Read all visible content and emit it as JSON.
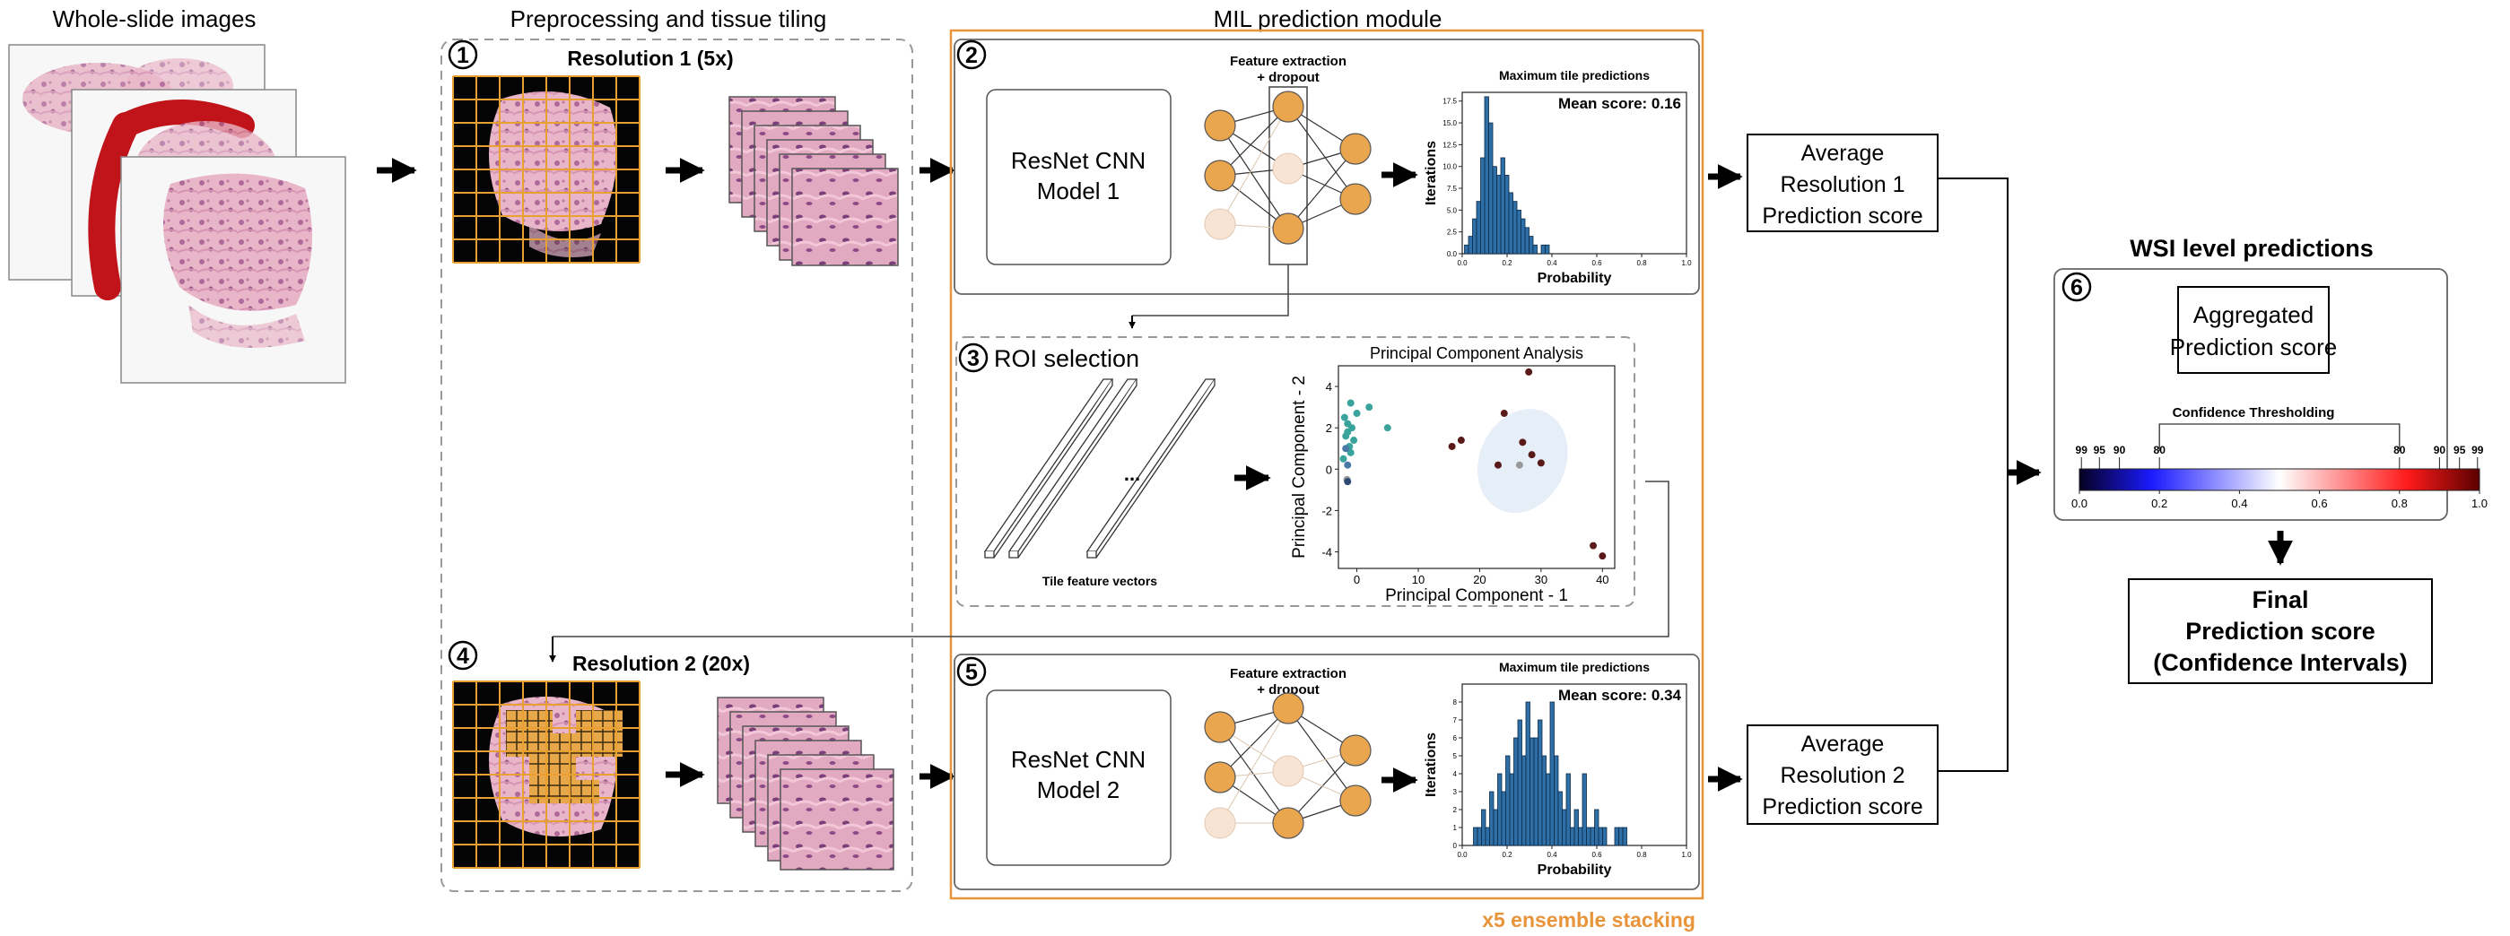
{
  "headers": {
    "wsi": "Whole-slide images",
    "preproc": "Preprocessing and tissue tiling",
    "mil": "MIL prediction module",
    "wsi_level": "WSI level predictions"
  },
  "steps": {
    "s1": "1",
    "s2": "2",
    "s3": "3",
    "s4": "4",
    "s5": "5",
    "s6": "6"
  },
  "resolution1": "Resolution 1 (5x)",
  "resolution2": "Resolution 2 (20x)",
  "model1": {
    "line1": "ResNet CNN",
    "line2": "Model 1"
  },
  "model2": {
    "line1": "ResNet CNN",
    "line2": "Model 2"
  },
  "feature_extraction": {
    "line1": "Feature extraction",
    "line2": "+ dropout"
  },
  "roi": {
    "title": "ROI selection",
    "ellipsis": "...",
    "tile_vectors": "Tile feature vectors"
  },
  "avg1": {
    "line1": "Average",
    "line2": "Resolution 1",
    "line3": "Prediction score"
  },
  "avg2": {
    "line1": "Average",
    "line2": "Resolution 2",
    "line3": "Prediction score"
  },
  "aggregated": {
    "line1": "Aggregated",
    "line2": "Prediction score"
  },
  "final": {
    "line1": "Final",
    "line2": "Prediction score",
    "line3": "(Confidence Intervals)"
  },
  "ensemble": "x5 ensemble stacking",
  "confidence": {
    "title": "Confidence Thresholding",
    "left_ticks": [
      "99",
      "95",
      "90",
      "80"
    ],
    "right_ticks": [
      "80",
      "90",
      "95",
      "99"
    ],
    "axis_ticks": [
      "0.0",
      "0.2",
      "0.4",
      "0.6",
      "0.8",
      "1.0"
    ],
    "colors": {
      "low": "#08002a",
      "mid_low": "#1030ff",
      "mid": "#ffffff",
      "mid_high": "#ff2020",
      "high": "#5a0000"
    }
  },
  "chart_data": [
    {
      "type": "bar",
      "title": "Maximum tile predictions",
      "annotation": "Mean score: 0.16",
      "xlabel": "Probability",
      "ylabel": "Iterations",
      "xlim": [
        0.0,
        1.0
      ],
      "ylim": [
        0,
        18.5
      ],
      "xticks": [
        "0.0",
        "0.2",
        "0.4",
        "0.6",
        "0.8",
        "1.0"
      ],
      "yticks": [
        "0.0",
        "2.5",
        "5.0",
        "7.5",
        "10.0",
        "12.5",
        "15.0",
        "17.5"
      ],
      "bin_width": 0.018,
      "x": [
        0.01,
        0.028,
        0.046,
        0.064,
        0.082,
        0.1,
        0.118,
        0.136,
        0.154,
        0.172,
        0.19,
        0.208,
        0.226,
        0.244,
        0.262,
        0.28,
        0.298,
        0.316,
        0.334,
        0.352,
        0.37,
        0.388
      ],
      "values": [
        1,
        2,
        4,
        6,
        11,
        18,
        15,
        10,
        9,
        11,
        9,
        7,
        6,
        5,
        4,
        3,
        2,
        1,
        0,
        1,
        1,
        0
      ],
      "color": "#2e6fa7"
    },
    {
      "type": "bar",
      "title": "Maximum tile predictions",
      "annotation": "Mean score: 0.34",
      "xlabel": "Probability",
      "ylabel": "Iterations",
      "xlim": [
        0.0,
        1.0
      ],
      "ylim": [
        0,
        9
      ],
      "xticks": [
        "0.0",
        "0.2",
        "0.4",
        "0.6",
        "0.8",
        "1.0"
      ],
      "yticks": [
        "0",
        "1",
        "2",
        "3",
        "4",
        "5",
        "6",
        "7",
        "8"
      ],
      "bin_width": 0.018,
      "x": [
        0.05,
        0.068,
        0.086,
        0.104,
        0.122,
        0.14,
        0.158,
        0.176,
        0.194,
        0.212,
        0.23,
        0.248,
        0.266,
        0.284,
        0.302,
        0.32,
        0.338,
        0.356,
        0.374,
        0.392,
        0.41,
        0.428,
        0.446,
        0.464,
        0.482,
        0.5,
        0.518,
        0.536,
        0.554,
        0.572,
        0.59,
        0.608,
        0.626,
        0.644,
        0.662,
        0.68,
        0.698,
        0.716
      ],
      "values": [
        1,
        1,
        2,
        1,
        3,
        2,
        4,
        3,
        5,
        4,
        6,
        7,
        5,
        8,
        6,
        6,
        7,
        5,
        4,
        8,
        5,
        3,
        2,
        4,
        1,
        2,
        1,
        4,
        1,
        1,
        2,
        1,
        1,
        0,
        0,
        1,
        1,
        1
      ],
      "color": "#2e6fa7"
    },
    {
      "type": "scatter",
      "title": "Principal Component Analysis",
      "xlabel": "Principal Component - 1",
      "ylabel": "Principal Component - 2",
      "xlim": [
        -3,
        42
      ],
      "ylim": [
        -4.8,
        5
      ],
      "xticks": [
        "0",
        "10",
        "20",
        "30",
        "40"
      ],
      "yticks": [
        "4",
        "2",
        "0",
        "-2",
        "-4"
      ],
      "series": [
        {
          "color": "#3aa39c",
          "points": [
            [
              -2,
              2.5
            ],
            [
              -1.5,
              2.2
            ],
            [
              -1,
              3.2
            ],
            [
              -1.8,
              1.6
            ],
            [
              -0.8,
              2.0
            ],
            [
              -1.2,
              1.1
            ],
            [
              -2.2,
              0.5
            ],
            [
              -1,
              0.8
            ],
            [
              0,
              2.7
            ],
            [
              2,
              3.0
            ],
            [
              -1.5,
              1.8
            ],
            [
              5,
              2.0
            ],
            [
              -0.5,
              1.4
            ]
          ]
        },
        {
          "color": "#4a7aa8",
          "points": [
            [
              -1.8,
              1.0
            ],
            [
              -1.5,
              0.2
            ]
          ]
        },
        {
          "color": "#5a1a1a",
          "points": [
            [
              28,
              4.7
            ],
            [
              24,
              2.7
            ],
            [
              15.5,
              1.1
            ],
            [
              17,
              1.4
            ],
            [
              23,
              0.2
            ],
            [
              27,
              1.3
            ],
            [
              28.5,
              0.7
            ],
            [
              30,
              0.3
            ],
            [
              38.5,
              -3.7
            ],
            [
              40,
              -4.2
            ]
          ]
        },
        {
          "color": "#999999",
          "points": [
            [
              -1.6,
              -0.5
            ],
            [
              26.5,
              0.2
            ]
          ]
        },
        {
          "color": "#2d4a73",
          "points": [
            [
              -1.5,
              -0.6
            ]
          ]
        }
      ],
      "ellipse": {
        "cx": 27,
        "cy": 0.4,
        "rx": 7,
        "ry": 2.6
      }
    }
  ]
}
